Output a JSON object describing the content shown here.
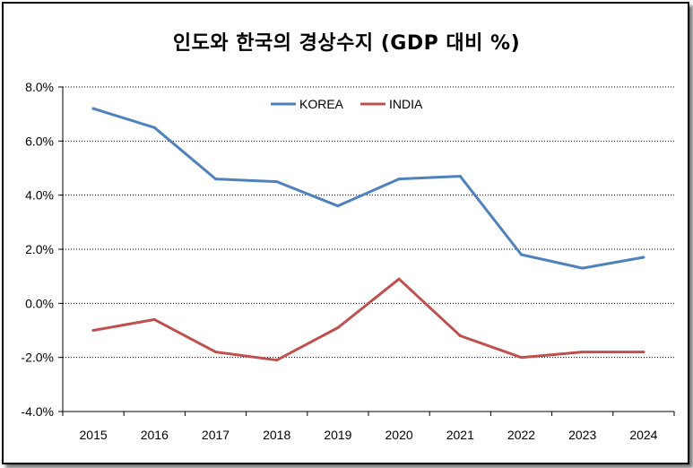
{
  "chart_data": {
    "type": "line",
    "title": "인도와 한국의 경상수지 (GDP 대비 %)",
    "xlabel": "",
    "ylabel": "",
    "categories": [
      "2015",
      "2016",
      "2017",
      "2018",
      "2019",
      "2020",
      "2021",
      "2022",
      "2023",
      "2024"
    ],
    "series": [
      {
        "name": "KOREA",
        "color": "#4F81BD",
        "values": [
          7.2,
          6.5,
          4.6,
          4.5,
          3.6,
          4.6,
          4.7,
          1.8,
          1.3,
          1.7
        ]
      },
      {
        "name": "INDIA",
        "color": "#C0504D",
        "values": [
          -1.0,
          -0.6,
          -1.8,
          -2.1,
          -0.9,
          0.9,
          -1.2,
          -2.0,
          -1.8,
          -1.8
        ]
      }
    ],
    "ylim": [
      -4,
      8
    ],
    "yticks": [
      -4,
      -2,
      0,
      2,
      4,
      6,
      8
    ],
    "ytick_labels": [
      "-4.0%",
      "-2.0%",
      "0.0%",
      "2.0%",
      "4.0%",
      "6.0%",
      "8.0%"
    ],
    "grid": true,
    "legend_position": "top-center"
  }
}
